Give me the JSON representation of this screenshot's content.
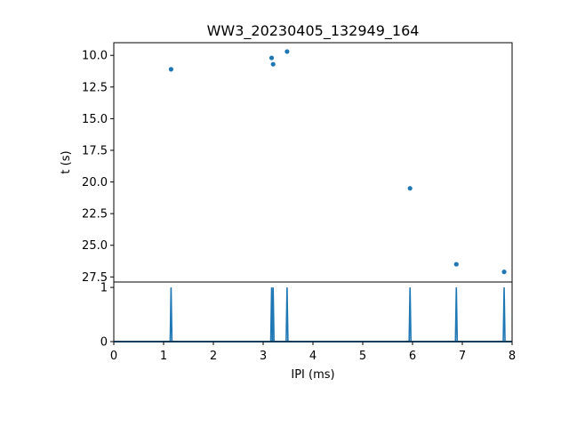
{
  "chart_data": [
    {
      "type": "scatter",
      "title": "WW3_20230405_132949_164",
      "xlabel": "",
      "ylabel": "t (s)",
      "xlim": [
        0,
        8
      ],
      "ylim": [
        27.9,
        9.0
      ],
      "y_inverted": true,
      "y_ticks": [
        10.0,
        12.5,
        15.0,
        17.5,
        20.0,
        22.5,
        25.0,
        27.5
      ],
      "y_tick_labels": [
        "10.0",
        "12.5",
        "15.0",
        "17.5",
        "20.0",
        "22.5",
        "25.0",
        "27.5"
      ],
      "marker_color": "#1f77b4",
      "points": [
        {
          "x": 1.15,
          "y": 11.1
        },
        {
          "x": 3.17,
          "y": 10.2
        },
        {
          "x": 3.2,
          "y": 10.7
        },
        {
          "x": 3.48,
          "y": 9.7
        },
        {
          "x": 5.95,
          "y": 20.5
        },
        {
          "x": 6.88,
          "y": 26.5
        },
        {
          "x": 7.84,
          "y": 27.1
        }
      ]
    },
    {
      "type": "line",
      "title": "",
      "xlabel": "IPI (ms)",
      "ylabel": "",
      "xlim": [
        0,
        8
      ],
      "ylim": [
        0,
        1.1
      ],
      "x_ticks": [
        0,
        1,
        2,
        3,
        4,
        5,
        6,
        7,
        8
      ],
      "x_tick_labels": [
        "0",
        "1",
        "2",
        "3",
        "4",
        "5",
        "6",
        "7",
        "8"
      ],
      "y_ticks": [
        0,
        1
      ],
      "y_tick_labels": [
        "0",
        "1"
      ],
      "line_color": "#1f77b4",
      "spikes": [
        1.15,
        3.17,
        3.2,
        3.48,
        5.95,
        6.88,
        7.84
      ]
    }
  ]
}
